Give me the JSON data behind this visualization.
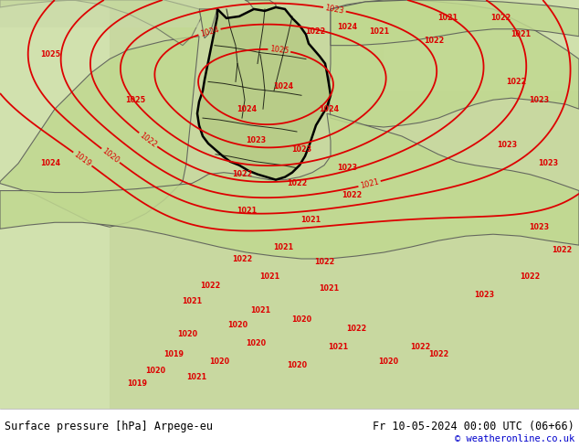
{
  "title_left": "Surface pressure [hPa] Arpege-eu",
  "title_right": "Fr 10-05-2024 00:00 UTC (06+66)",
  "copyright": "© weatheronline.co.uk",
  "footer_bg": "#ffffff",
  "footer_text_color": "#000000",
  "copyright_color": "#0000cc",
  "figsize": [
    6.34,
    4.9
  ],
  "dpi": 100,
  "contour_color": "#dd0000",
  "land_color_main": "#c8d8a0",
  "land_color_light": "#d8e8b8",
  "sea_color": "#c8d8c0",
  "border_color": "#000000",
  "state_border_color": "#000000",
  "footer_fontsize": 8.5,
  "copyright_fontsize": 7.5,
  "label_fontsize": 6.0
}
